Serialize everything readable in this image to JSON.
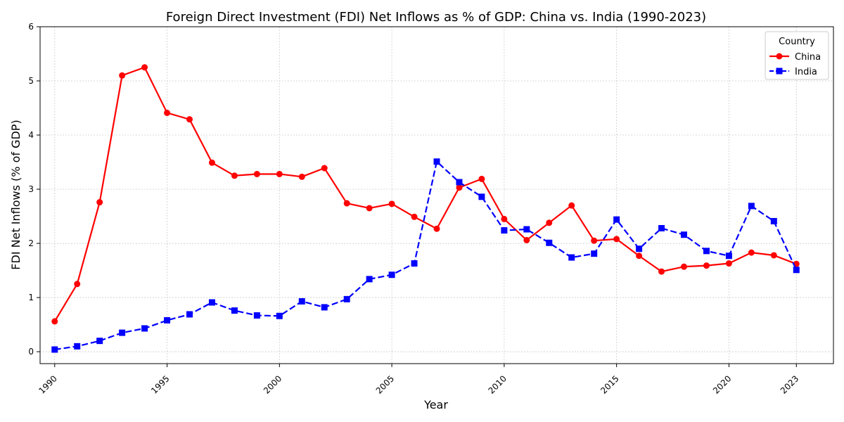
{
  "chart_data": {
    "type": "line",
    "title": "Foreign Direct Investment (FDI) Net Inflows as % of GDP: China vs. India (1990-2023)",
    "xlabel": "Year",
    "ylabel": "FDI Net Inflows (% of GDP)",
    "x": [
      1990,
      1991,
      1992,
      1993,
      1994,
      1995,
      1996,
      1997,
      1998,
      1999,
      2000,
      2001,
      2002,
      2003,
      2004,
      2005,
      2006,
      2007,
      2008,
      2009,
      2010,
      2011,
      2012,
      2013,
      2014,
      2015,
      2016,
      2017,
      2018,
      2019,
      2020,
      2021,
      2022,
      2023
    ],
    "xticks": [
      "1990",
      "1995",
      "2000",
      "2005",
      "2010",
      "2015",
      "2020",
      "2023"
    ],
    "yticks": [
      "0",
      "1",
      "2",
      "3",
      "4",
      "5",
      "6"
    ],
    "xlim": [
      1989.35,
      2024.65
    ],
    "ylim": [
      -0.22,
      6.0
    ],
    "grid": true,
    "legend": {
      "title": "Country",
      "placement": "top-right"
    },
    "series": [
      {
        "name": "China",
        "color": "#ff0000",
        "marker": "circle",
        "linestyle": "solid",
        "values": [
          0.56,
          1.25,
          2.76,
          5.1,
          5.25,
          4.41,
          4.29,
          3.49,
          3.25,
          3.28,
          3.28,
          3.23,
          3.39,
          2.74,
          2.65,
          2.73,
          2.49,
          2.27,
          3.03,
          3.19,
          2.45,
          2.06,
          2.38,
          2.7,
          2.05,
          2.08,
          1.77,
          1.48,
          1.57,
          1.59,
          1.63,
          1.83,
          1.78,
          1.62
        ]
      },
      {
        "name": "India",
        "color": "#0000ff",
        "marker": "square",
        "linestyle": "dashed",
        "values": [
          0.04,
          0.1,
          0.2,
          0.35,
          0.43,
          0.58,
          0.69,
          0.91,
          0.76,
          0.67,
          0.66,
          0.93,
          0.82,
          0.97,
          1.34,
          1.42,
          1.63,
          3.51,
          3.13,
          2.86,
          2.24,
          2.26,
          2.01,
          1.74,
          1.81,
          2.44,
          1.9,
          2.28,
          2.16,
          1.86,
          1.77,
          2.69,
          2.41,
          1.51
        ]
      }
    ]
  }
}
